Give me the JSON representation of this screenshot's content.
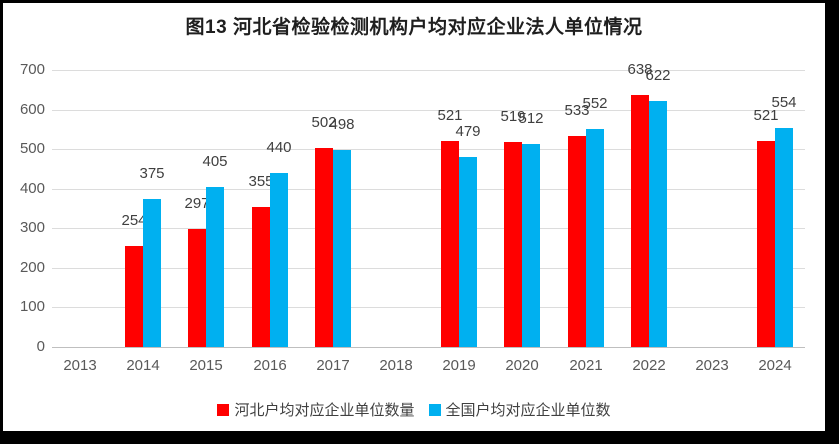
{
  "chart_data": {
    "type": "bar",
    "title": "图13 河北省检验检测机构户均对应企业法人单位情况",
    "categories": [
      "2013",
      "2014",
      "2015",
      "2016",
      "2017",
      "2018",
      "2019",
      "2020",
      "2021",
      "2022",
      "2023",
      "2024"
    ],
    "series": [
      {
        "id": "hebei",
        "name": "河北户均对应企业单位数量",
        "color": "#FF0000",
        "values": [
          null,
          254,
          297,
          355,
          502,
          null,
          521,
          519,
          533,
          638,
          null,
          521
        ]
      },
      {
        "id": "national",
        "name": "全国户均对应企业单位数",
        "color": "#00B0F0",
        "values": [
          null,
          375,
          405,
          440,
          498,
          null,
          479,
          512,
          552,
          622,
          null,
          554
        ]
      }
    ],
    "xlabel": "",
    "ylabel": "",
    "ylim": [
      0,
      700
    ],
    "ytick_step": 100,
    "yticks": [
      "0",
      "100",
      "200",
      "300",
      "400",
      "500",
      "600",
      "700"
    ],
    "grid": true,
    "legend_position": "bottom",
    "data_labels": true
  },
  "colors": {
    "background": "#FFFFFF",
    "outer_background": "#000000",
    "gridline": "#DCDCDC",
    "axis_line": "#BFBFBF",
    "tick_text": "#595959",
    "label_text": "#3F3F3F",
    "title_text": "#1F1F1F"
  }
}
